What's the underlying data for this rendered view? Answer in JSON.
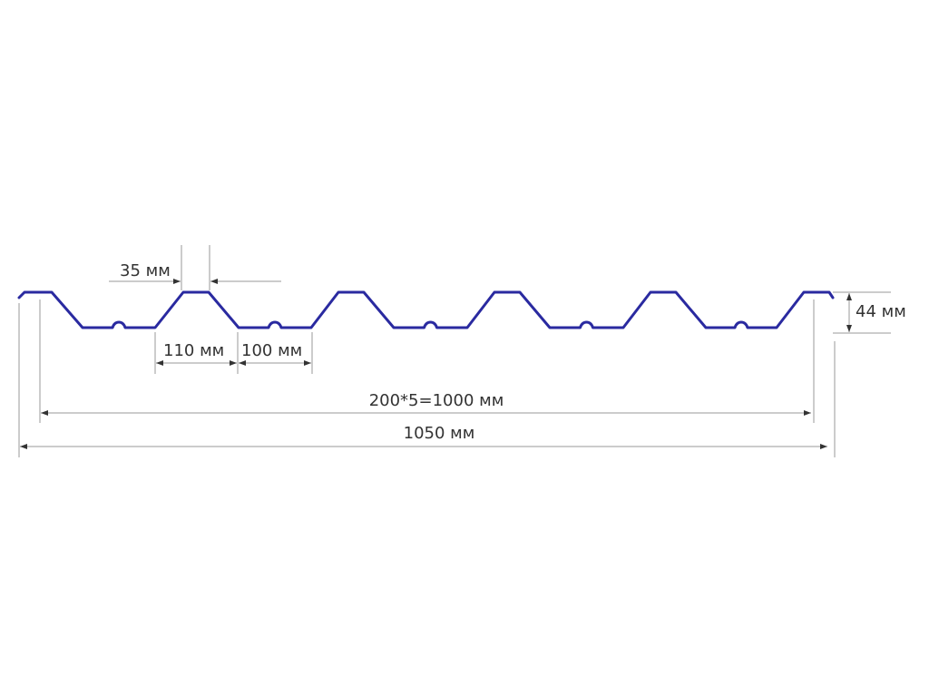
{
  "colors": {
    "profile": "#2a2aa0",
    "dimension_line": "#9a9a9a",
    "text": "#333333"
  },
  "dimensions": {
    "rib_top_width": "35 мм",
    "rib_base_width": "110 мм",
    "trough_width": "100 мм",
    "height": "44 мм",
    "effective_width": "200*5=1000 мм",
    "total_width": "1050 мм"
  }
}
